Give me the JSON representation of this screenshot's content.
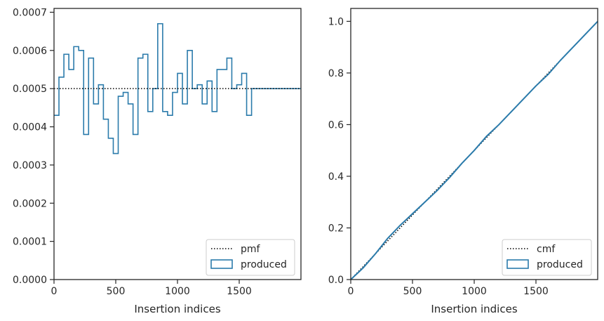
{
  "colors": {
    "produced": "#2b7bab",
    "reference": "#000000",
    "axis": "#262626",
    "legend_border": "#cccccc"
  },
  "chart_data": [
    {
      "type": "histogram-step",
      "xlabel": "Insertion indices",
      "ylabel": "",
      "xlim": [
        0,
        2000
      ],
      "ylim": [
        0,
        0.00071
      ],
      "xticks": [
        0,
        500,
        1000,
        1500
      ],
      "xtick_labels": [
        "0",
        "500",
        "1000",
        "1500"
      ],
      "yticks": [
        0,
        0.0001,
        0.0002,
        0.0003,
        0.0004,
        0.0005,
        0.0006,
        0.0007
      ],
      "ytick_labels": [
        "0.0000",
        "0.0001",
        "0.0002",
        "0.0003",
        "0.0004",
        "0.0005",
        "0.0006",
        "0.0007"
      ],
      "legend_position": "lower right",
      "series": [
        {
          "name": "pmf",
          "style": "dotted",
          "kind": "line",
          "x": [
            0,
            2000
          ],
          "y": [
            0.0005,
            0.0005
          ]
        },
        {
          "name": "produced",
          "style": "step",
          "kind": "histogram",
          "bin_edges": [
            0,
            40,
            80,
            120,
            160,
            200,
            240,
            280,
            320,
            360,
            400,
            440,
            480,
            520,
            560,
            600,
            640,
            680,
            720,
            760,
            800,
            840,
            880,
            920,
            960,
            1000,
            1040,
            1080,
            1120,
            1160,
            1200,
            1240,
            1280,
            1320,
            1360,
            1400,
            1440,
            1480,
            1520,
            1560,
            1600,
            1640,
            1680,
            1720,
            1760,
            1800,
            1840,
            1880,
            1920,
            1960,
            2000
          ],
          "values": [
            0.00043,
            0.00053,
            0.00059,
            0.00055,
            0.00061,
            0.0006,
            0.00038,
            0.00058,
            0.00046,
            0.00051,
            0.00042,
            0.00037,
            0.00033,
            0.00048,
            0.00049,
            0.00046,
            0.00038,
            0.00058,
            0.00059,
            0.00044,
            0.0005,
            0.00067,
            0.00044,
            0.00043,
            0.00049,
            0.00054,
            0.00046,
            0.0006,
            0.0005,
            0.00051,
            0.00046,
            0.00052,
            0.00044,
            0.00055,
            0.00055,
            0.00058,
            0.0005,
            0.00051,
            0.00054,
            0.00043,
            0.0005,
            0.0005,
            0.0005,
            0.0005,
            0.0005,
            0.0005,
            0.0005,
            0.0005,
            0.0005,
            0.0005
          ]
        }
      ]
    },
    {
      "type": "line",
      "xlabel": "Insertion indices",
      "ylabel": "",
      "xlim": [
        0,
        2000
      ],
      "ylim": [
        0,
        1.05
      ],
      "xticks": [
        0,
        500,
        1000,
        1500
      ],
      "xtick_labels": [
        "0",
        "500",
        "1000",
        "1500"
      ],
      "yticks": [
        0,
        0.2,
        0.4,
        0.6,
        0.8,
        1.0
      ],
      "ytick_labels": [
        "0.0",
        "0.2",
        "0.4",
        "0.6",
        "0.8",
        "1.0"
      ],
      "legend_position": "lower right",
      "series": [
        {
          "name": "cmf",
          "style": "dotted",
          "x": [
            0,
            2000
          ],
          "y": [
            0,
            1
          ]
        },
        {
          "name": "produced",
          "style": "solid",
          "x": [
            0,
            100,
            200,
            300,
            400,
            500,
            600,
            700,
            800,
            900,
            1000,
            1100,
            1200,
            1300,
            1400,
            1500,
            1600,
            1700,
            1800,
            1900,
            2000
          ],
          "y": [
            0,
            0.045,
            0.1,
            0.16,
            0.21,
            0.255,
            0.3,
            0.345,
            0.395,
            0.45,
            0.5,
            0.555,
            0.6,
            0.65,
            0.7,
            0.75,
            0.795,
            0.85,
            0.9,
            0.95,
            1.0
          ]
        }
      ]
    }
  ],
  "legends": [
    {
      "items": [
        {
          "label": "pmf"
        },
        {
          "label": "produced"
        }
      ]
    },
    {
      "items": [
        {
          "label": "cmf"
        },
        {
          "label": "produced"
        }
      ]
    }
  ]
}
